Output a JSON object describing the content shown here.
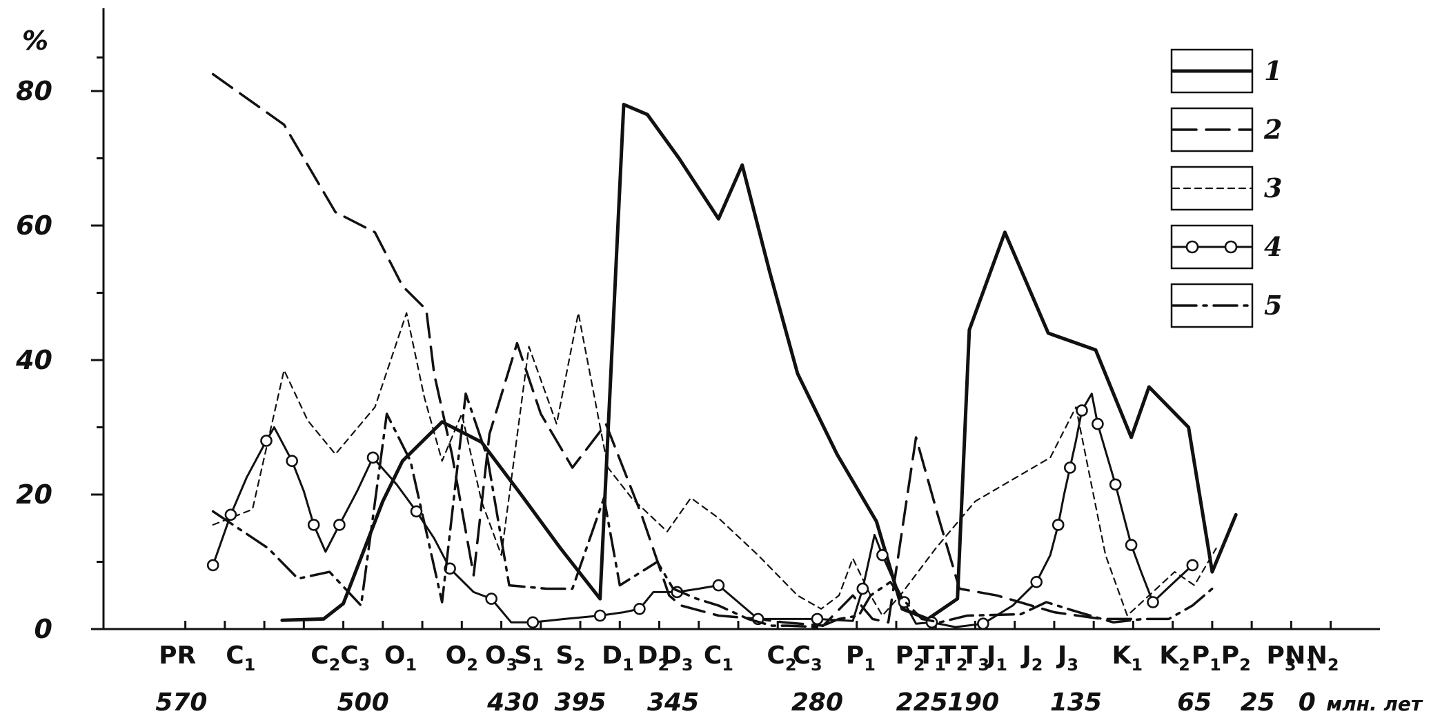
{
  "chart_data": {
    "type": "line",
    "ylabel": "%",
    "ylim": [
      0,
      90
    ],
    "yticks": [
      0,
      20,
      40,
      60,
      80
    ],
    "grid": false,
    "legend_position": "top-right",
    "x_domain": [
      0,
      29
    ],
    "period_labels": [
      {
        "main": "PR",
        "sub": "",
        "pos": 0.3
      },
      {
        "main": "C",
        "sub": "1",
        "pos": 1.9
      },
      {
        "main": "C",
        "sub": "2",
        "pos": 4.05
      },
      {
        "main": "C",
        "sub": "3",
        "pos": 4.8
      },
      {
        "main": "O",
        "sub": "1",
        "pos": 5.95
      },
      {
        "main": "O",
        "sub": "2",
        "pos": 7.5
      },
      {
        "main": "O",
        "sub": "3",
        "pos": 8.5
      },
      {
        "main": "S",
        "sub": "1",
        "pos": 9.2
      },
      {
        "main": "S",
        "sub": "2",
        "pos": 10.25
      },
      {
        "main": "D",
        "sub": "1",
        "pos": 11.45
      },
      {
        "main": "D",
        "sub": "2",
        "pos": 12.35
      },
      {
        "main": "D",
        "sub": "3",
        "pos": 12.95
      },
      {
        "main": "C",
        "sub": "1",
        "pos": 14.0
      },
      {
        "main": "C",
        "sub": "2",
        "pos": 15.6
      },
      {
        "main": "C",
        "sub": "3",
        "pos": 16.25
      },
      {
        "main": "P",
        "sub": "1",
        "pos": 17.6
      },
      {
        "main": "P",
        "sub": "2",
        "pos": 18.85
      },
      {
        "main": "T",
        "sub": "1",
        "pos": 19.4
      },
      {
        "main": "T",
        "sub": "2",
        "pos": 19.95
      },
      {
        "main": "T",
        "sub": "3",
        "pos": 20.5
      },
      {
        "main": "J",
        "sub": "1",
        "pos": 21.05
      },
      {
        "main": "J",
        "sub": "2",
        "pos": 21.95
      },
      {
        "main": "J",
        "sub": "3",
        "pos": 22.85
      },
      {
        "main": "K",
        "sub": "1",
        "pos": 24.35
      },
      {
        "main": "K",
        "sub": "2",
        "pos": 25.55
      },
      {
        "main": "P",
        "sub": "1",
        "pos": 26.35
      },
      {
        "main": "P",
        "sub": "2",
        "pos": 27.1
      },
      {
        "main": "P",
        "sub": "3",
        "pos": 28.25
      },
      {
        "main": "N",
        "sub": "1",
        "pos": 28.75
      },
      {
        "main": "N",
        "sub": "2",
        "pos": 29.3
      }
    ],
    "age_labels": [
      {
        "text": "570",
        "pos": 0.4
      },
      {
        "text": "500",
        "pos": 5.0
      },
      {
        "text": "430",
        "pos": 8.8
      },
      {
        "text": "395",
        "pos": 10.5
      },
      {
        "text": "345",
        "pos": 12.85
      },
      {
        "text": "280",
        "pos": 16.5
      },
      {
        "text": "225",
        "pos": 19.15
      },
      {
        "text": "190",
        "pos": 20.45
      },
      {
        "text": "135",
        "pos": 23.05
      },
      {
        "text": "65",
        "pos": 26.05
      },
      {
        "text": "25",
        "pos": 27.65
      },
      {
        "text": "0",
        "pos": 28.9
      }
    ],
    "age_unit": "млн. лет",
    "series": [
      {
        "name": "1",
        "style": "solid-thick",
        "points": [
          [
            2.95,
            1.3
          ],
          [
            4.0,
            1.5
          ],
          [
            4.5,
            3.8
          ],
          [
            5.5,
            19
          ],
          [
            6.0,
            25
          ],
          [
            7.0,
            30.8
          ],
          [
            8.0,
            27.8
          ],
          [
            9.0,
            20
          ],
          [
            10.0,
            12
          ],
          [
            11.0,
            4.5
          ],
          [
            11.6,
            78
          ],
          [
            12.2,
            76.5
          ],
          [
            13.0,
            70
          ],
          [
            14.0,
            61
          ],
          [
            14.6,
            69
          ],
          [
            15.3,
            53
          ],
          [
            16.0,
            38
          ],
          [
            17.0,
            26
          ],
          [
            18.0,
            16
          ],
          [
            18.65,
            3
          ],
          [
            19.3,
            1.5
          ],
          [
            20.05,
            4.5
          ],
          [
            20.35,
            44.5
          ],
          [
            21.25,
            59
          ],
          [
            22.35,
            44
          ],
          [
            23.55,
            41.5
          ],
          [
            24.45,
            28.5
          ],
          [
            24.9,
            36
          ],
          [
            25.9,
            30
          ],
          [
            26.5,
            8.5
          ],
          [
            27.1,
            17
          ]
        ]
      },
      {
        "name": "2",
        "style": "dashed",
        "points": [
          [
            1.2,
            82.5
          ],
          [
            3.0,
            75
          ],
          [
            4.3,
            62
          ],
          [
            5.3,
            59
          ],
          [
            6.0,
            51
          ],
          [
            6.6,
            47.5
          ],
          [
            6.8,
            38
          ],
          [
            7.25,
            26
          ],
          [
            7.8,
            8
          ],
          [
            8.2,
            29
          ],
          [
            8.9,
            42.5
          ],
          [
            9.5,
            32
          ],
          [
            10.3,
            24
          ],
          [
            11.15,
            30.5
          ],
          [
            12.05,
            17
          ],
          [
            12.75,
            5
          ],
          [
            13.05,
            3.5
          ],
          [
            14.0,
            2
          ],
          [
            15.0,
            1.5
          ],
          [
            15.65,
            1
          ],
          [
            16.65,
            0.5
          ],
          [
            17.4,
            5
          ],
          [
            17.9,
            1.5
          ],
          [
            18.3,
            1
          ],
          [
            19.0,
            28.5
          ],
          [
            19.55,
            17
          ],
          [
            20.1,
            6
          ],
          [
            21.05,
            5
          ],
          [
            22.5,
            2.5
          ],
          [
            23.7,
            1.5
          ],
          [
            24.5,
            1.5
          ]
        ]
      },
      {
        "name": "3",
        "style": "dotted",
        "points": [
          [
            1.2,
            15.5
          ],
          [
            2.2,
            17.8
          ],
          [
            3.0,
            38.5
          ],
          [
            3.6,
            31
          ],
          [
            4.3,
            26
          ],
          [
            5.3,
            33
          ],
          [
            6.1,
            47
          ],
          [
            6.55,
            34.5
          ],
          [
            7.0,
            25
          ],
          [
            7.5,
            32
          ],
          [
            8.0,
            19
          ],
          [
            8.5,
            11
          ],
          [
            9.2,
            42
          ],
          [
            9.9,
            30.5
          ],
          [
            10.45,
            47
          ],
          [
            11.2,
            24
          ],
          [
            11.8,
            19.5
          ],
          [
            12.7,
            14.5
          ],
          [
            13.3,
            19.5
          ],
          [
            14.0,
            16.5
          ],
          [
            15.0,
            11
          ],
          [
            16.0,
            5
          ],
          [
            16.6,
            3
          ],
          [
            17.05,
            5
          ],
          [
            17.4,
            10.5
          ],
          [
            17.85,
            5
          ],
          [
            18.15,
            2
          ],
          [
            18.6,
            5
          ],
          [
            19.5,
            12
          ],
          [
            20.5,
            19
          ],
          [
            22.4,
            25.5
          ],
          [
            23.05,
            33
          ],
          [
            23.8,
            11
          ],
          [
            24.35,
            2
          ],
          [
            25.55,
            8.5
          ],
          [
            26.05,
            6.5
          ],
          [
            26.6,
            12
          ]
        ]
      },
      {
        "name": "4",
        "style": "solid-circles",
        "points": [
          [
            1.2,
            9.5
          ],
          [
            1.65,
            17
          ],
          [
            2.05,
            22.5
          ],
          [
            2.55,
            28
          ],
          [
            2.75,
            30
          ],
          [
            3.2,
            25
          ],
          [
            3.5,
            20.5
          ],
          [
            3.75,
            15.5
          ],
          [
            4.05,
            11.5
          ],
          [
            4.4,
            15.5
          ],
          [
            4.85,
            20.5
          ],
          [
            5.25,
            25.5
          ],
          [
            5.85,
            21.5
          ],
          [
            6.35,
            17.5
          ],
          [
            6.8,
            13.5
          ],
          [
            7.2,
            9
          ],
          [
            7.8,
            5.5
          ],
          [
            8.25,
            4.5
          ],
          [
            8.75,
            1
          ],
          [
            9.3,
            1
          ],
          [
            10.1,
            1.5
          ],
          [
            11.0,
            2
          ],
          [
            11.6,
            2.5
          ],
          [
            12.0,
            3
          ],
          [
            12.35,
            5.5
          ],
          [
            12.95,
            5.5
          ],
          [
            13.5,
            6
          ],
          [
            14.0,
            6.5
          ],
          [
            14.5,
            4
          ],
          [
            15.0,
            1.5
          ],
          [
            15.7,
            1.5
          ],
          [
            16.5,
            1.5
          ],
          [
            17.4,
            1.2
          ],
          [
            17.65,
            6
          ],
          [
            17.95,
            14
          ],
          [
            18.15,
            11
          ],
          [
            18.45,
            7
          ],
          [
            18.7,
            4
          ],
          [
            19.0,
            0.8
          ],
          [
            19.4,
            1
          ],
          [
            20.0,
            0.3
          ],
          [
            20.7,
            0.8
          ],
          [
            21.45,
            3.5
          ],
          [
            22.05,
            7
          ],
          [
            22.4,
            11
          ],
          [
            22.6,
            15.5
          ],
          [
            22.75,
            20
          ],
          [
            22.9,
            24
          ],
          [
            23.05,
            28
          ],
          [
            23.2,
            32.5
          ],
          [
            23.45,
            35
          ],
          [
            23.6,
            30.5
          ],
          [
            23.8,
            26.5
          ],
          [
            24.05,
            21.5
          ],
          [
            24.25,
            17
          ],
          [
            24.45,
            12.5
          ],
          [
            24.7,
            8.5
          ],
          [
            25.0,
            4
          ],
          [
            25.45,
            6.5
          ],
          [
            26.0,
            9.5
          ]
        ]
      },
      {
        "name": "5",
        "style": "dash-dot",
        "points": [
          [
            1.2,
            17.5
          ],
          [
            2.6,
            12
          ],
          [
            3.35,
            7.5
          ],
          [
            4.15,
            8.5
          ],
          [
            4.95,
            3.5
          ],
          [
            5.6,
            32
          ],
          [
            6.2,
            25
          ],
          [
            7.0,
            4
          ],
          [
            7.6,
            35
          ],
          [
            8.15,
            25.5
          ],
          [
            8.7,
            6.5
          ],
          [
            9.65,
            6
          ],
          [
            10.3,
            6
          ],
          [
            11.1,
            19.5
          ],
          [
            11.5,
            6.5
          ],
          [
            12.45,
            10
          ],
          [
            12.85,
            6
          ],
          [
            13.45,
            4.5
          ],
          [
            14.0,
            3.5
          ],
          [
            14.75,
            1.5
          ],
          [
            15.35,
            0.5
          ],
          [
            15.75,
            0.5
          ],
          [
            16.55,
            0.3
          ],
          [
            17.05,
            1.5
          ],
          [
            17.55,
            2
          ],
          [
            17.85,
            5
          ],
          [
            18.35,
            7
          ],
          [
            18.65,
            4.5
          ],
          [
            19.15,
            1.5
          ],
          [
            19.6,
            1
          ],
          [
            20.3,
            2
          ],
          [
            21.65,
            2.2
          ],
          [
            22.3,
            4
          ],
          [
            22.95,
            2.8
          ],
          [
            24.0,
            1
          ],
          [
            24.75,
            1.5
          ],
          [
            25.4,
            1.5
          ],
          [
            26.0,
            3.5
          ],
          [
            26.6,
            6.5
          ]
        ]
      }
    ]
  }
}
